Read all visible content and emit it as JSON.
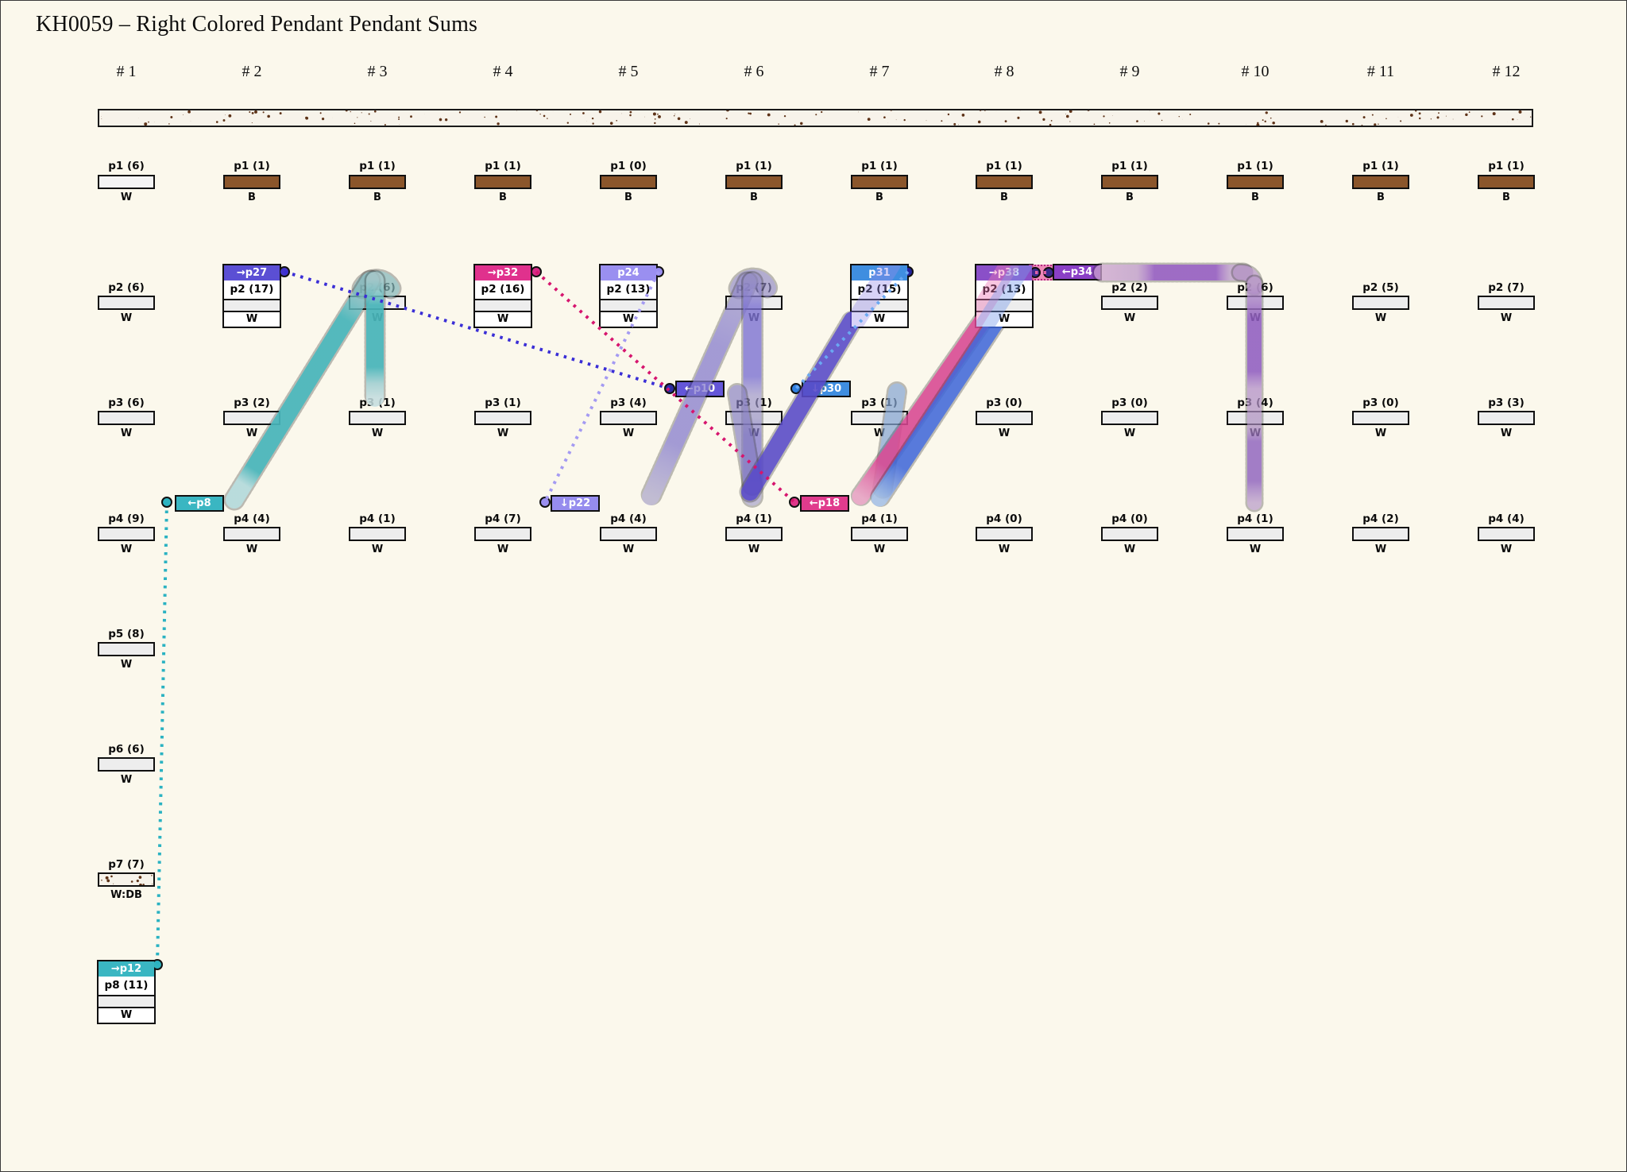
{
  "title": "KH0059 – Right Colored Pendant Pendant Sums",
  "legend_colors": {
    "background": "#fbf8ec",
    "bar_fill": "#ededed",
    "brown_bar": "#8b562b",
    "white_bar": "#f4f4f4",
    "speckle_dot": "#5e3318",
    "teal": "#3ab6c2",
    "periwinkle": "#968cee",
    "pink": "#e03b8d",
    "slate_blue": "#5b4fd4",
    "blue": "#3f8ee0",
    "purple": "#8a4fc8",
    "indigo_band": "#5c4cd0",
    "purple_band": "#9a5ec8",
    "pink_band": "#e3489a",
    "blue_band": "#426ce4",
    "lavender_band": "#9488ea",
    "light_blue_band": "#98bef3"
  },
  "columns": [
    {
      "header": "# 1",
      "p1": {
        "label": "p1 (6)",
        "sub": "W",
        "fill": "white"
      },
      "p2": {
        "label": "p2 (6)",
        "sub": "W"
      },
      "p3": {
        "label": "p3 (6)",
        "sub": "W"
      },
      "p4": {
        "label": "p4 (9)",
        "sub": "W"
      },
      "p5": {
        "label": "p5 (8)",
        "sub": "W"
      },
      "p6": {
        "label": "p6 (6)",
        "sub": "W"
      },
      "p7": {
        "label": "p7 (7)",
        "sub": "W:DB",
        "fill": "speckle"
      },
      "p8": {
        "chip": "→p12",
        "chip_color": "#3ab6c2",
        "label": "p8 (11)",
        "sub": "W"
      }
    },
    {
      "header": "# 2",
      "p1": {
        "label": "p1 (1)",
        "sub": "B",
        "fill": "brown"
      },
      "p2": {
        "chip": "→p27",
        "chip_color": "#5b4fd4",
        "label": "p2 (17)",
        "sub": "W"
      },
      "p3": {
        "label": "p3 (2)",
        "sub": "W"
      },
      "p4": {
        "label": "p4 (4)",
        "sub": "W"
      }
    },
    {
      "header": "# 3",
      "p1": {
        "label": "p1 (1)",
        "sub": "B",
        "fill": "brown"
      },
      "p2": {
        "label": "p2 (6)",
        "sub": "W"
      },
      "p3": {
        "label": "p3 (1)",
        "sub": "W"
      },
      "p4": {
        "label": "p4 (1)",
        "sub": "W"
      }
    },
    {
      "header": "# 4",
      "p1": {
        "label": "p1 (1)",
        "sub": "B",
        "fill": "brown"
      },
      "p2": {
        "chip": "→p32",
        "chip_color": "#e0318d",
        "label": "p2 (16)",
        "sub": "W"
      },
      "p3": {
        "label": "p3 (1)",
        "sub": "W"
      },
      "p4": {
        "label": "p4 (7)",
        "sub": "W"
      }
    },
    {
      "header": "# 5",
      "p1": {
        "label": "p1 (0)",
        "sub": "B",
        "fill": "brown"
      },
      "p2": {
        "chip": "p24",
        "chip_color": "#9a8ff0",
        "label": "p2 (13)",
        "sub": "W"
      },
      "p3": {
        "label": "p3 (4)",
        "sub": "W"
      },
      "p4": {
        "label": "p4 (4)",
        "sub": "W"
      }
    },
    {
      "header": "# 6",
      "p1": {
        "label": "p1 (1)",
        "sub": "B",
        "fill": "brown"
      },
      "p2": {
        "label": "p2 (7)",
        "sub": "W"
      },
      "p3": {
        "label": "p3 (1)",
        "sub": "W"
      },
      "p4": {
        "label": "p4 (1)",
        "sub": "W"
      }
    },
    {
      "header": "# 7",
      "p1": {
        "label": "p1 (1)",
        "sub": "B",
        "fill": "brown"
      },
      "p2": {
        "chip": "p31",
        "chip_color": "#3f8ee0",
        "label": "p2 (15)",
        "sub": "W"
      },
      "p3": {
        "label": "p3 (1)",
        "sub": "W"
      },
      "p4": {
        "label": "p4 (1)",
        "sub": "W"
      }
    },
    {
      "header": "# 8",
      "p1": {
        "label": "p1 (1)",
        "sub": "B",
        "fill": "brown"
      },
      "p2": {
        "chip": "→p38",
        "chip_color": "#8a4fc8",
        "label": "p2 (13)",
        "sub": "W"
      },
      "p3": {
        "label": "p3 (0)",
        "sub": "W"
      },
      "p4": {
        "label": "p4 (0)",
        "sub": "W"
      }
    },
    {
      "header": "# 9",
      "p1": {
        "label": "p1 (1)",
        "sub": "B",
        "fill": "brown"
      },
      "p2": {
        "label": "p2 (2)",
        "sub": "W"
      },
      "p3": {
        "label": "p3 (0)",
        "sub": "W"
      },
      "p4": {
        "label": "p4 (0)",
        "sub": "W"
      }
    },
    {
      "header": "# 10",
      "p1": {
        "label": "p1 (1)",
        "sub": "B",
        "fill": "brown"
      },
      "p2": {
        "label": "p2 (6)",
        "sub": "W"
      },
      "p3": {
        "label": "p3 (4)",
        "sub": "W"
      },
      "p4": {
        "label": "p4 (1)",
        "sub": "W"
      }
    },
    {
      "header": "# 11",
      "p1": {
        "label": "p1 (1)",
        "sub": "B",
        "fill": "brown"
      },
      "p2": {
        "label": "p2 (5)",
        "sub": "W"
      },
      "p3": {
        "label": "p3 (0)",
        "sub": "W"
      },
      "p4": {
        "label": "p4 (2)",
        "sub": "W"
      }
    },
    {
      "header": "# 12",
      "p1": {
        "label": "p1 (1)",
        "sub": "B",
        "fill": "brown"
      },
      "p2": {
        "label": "p2 (7)",
        "sub": "W"
      },
      "p3": {
        "label": "p3 (3)",
        "sub": "W"
      },
      "p4": {
        "label": "p4 (4)",
        "sub": "W"
      }
    }
  ],
  "connector_chips": [
    {
      "id": "p8",
      "label": "←p8",
      "color": "#3ab6c2"
    },
    {
      "id": "p22",
      "label": "↓p22",
      "color": "#968cee"
    },
    {
      "id": "p18",
      "label": "←p18",
      "color": "#e03b8d"
    },
    {
      "id": "p10",
      "label": "←p10",
      "color": "#6456d8"
    },
    {
      "id": "p30",
      "label": "↓p30",
      "color": "#3f8ee0"
    },
    {
      "id": "p34",
      "label": "←p34",
      "color": "#8a3fc6"
    }
  ],
  "links": [
    {
      "from": "→p27",
      "to": "←p10",
      "color": "#3a2ed6"
    },
    {
      "from": "→p32",
      "to": "←p18",
      "color": "#d6156e"
    },
    {
      "from": "p24",
      "to": "↓p22",
      "color": "#a49af2"
    },
    {
      "from": "p31",
      "to": "↓p30",
      "color": "#6aa8f2"
    },
    {
      "from": "←p8",
      "to": "→p12",
      "color": "#2ab2c2"
    },
    {
      "from": "→p38",
      "to": "←p34",
      "color": "#e060a8"
    }
  ],
  "flow_bands": [
    {
      "color": "#49b9be",
      "desc": "teal band: ←p8 up over col 3 p2 and down toward col 3 p3"
    },
    {
      "color": "#9488ea",
      "desc": "lavender arch over col 6 p2 with legs to col 5/6 p4"
    },
    {
      "color": "#5c4cd0",
      "desc": "indigo band: col 6 p4 up to p31 box (col 7 p2)"
    },
    {
      "color": "#e3489a",
      "desc": "pink band: →p38 box down to col 7 p4"
    },
    {
      "color": "#426ce4",
      "desc": "blue band: →p38 box down to col 7 p4"
    },
    {
      "color": "#98bef3",
      "desc": "light blue band: ↓p30 down to col 7 p4"
    },
    {
      "color": "#9a5ec8",
      "desc": "purple band: ←p34 right then down col 10 to p4"
    }
  ]
}
